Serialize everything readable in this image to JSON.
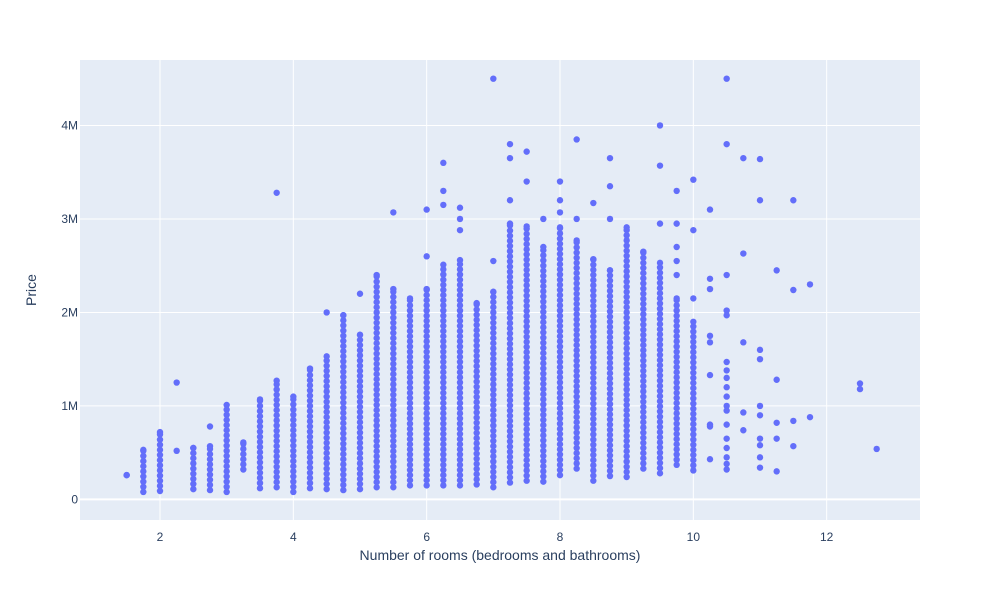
{
  "chart_data": {
    "type": "scatter",
    "title": "",
    "xlabel": "Number of rooms (bedrooms and bathrooms)",
    "ylabel": "Price",
    "xlim": [
      0.8,
      13.4
    ],
    "ylim": [
      -220000,
      4700000
    ],
    "x_ticks": [
      2,
      4,
      6,
      8,
      10,
      12
    ],
    "y_ticks": [
      0,
      1000000,
      2000000,
      3000000,
      4000000
    ],
    "y_tick_labels": [
      "0",
      "1M",
      "2M",
      "3M",
      "4M"
    ],
    "grid": true,
    "legend": "none",
    "colors": {
      "marker": "#636efa",
      "plot_bg": "#e5ecf6",
      "grid": "#ffffff",
      "text": "#2a3f5f"
    },
    "columns": [
      {
        "x": 1.5,
        "min": 260000,
        "max": 260000
      },
      {
        "x": 1.75,
        "min": 80000,
        "max": 530000
      },
      {
        "x": 2.0,
        "min": 90000,
        "max": 720000
      },
      {
        "x": 2.5,
        "min": 110000,
        "max": 550000
      },
      {
        "x": 2.75,
        "min": 100000,
        "max": 570000
      },
      {
        "x": 3.0,
        "min": 80000,
        "max": 1010000
      },
      {
        "x": 3.25,
        "min": 320000,
        "max": 610000
      },
      {
        "x": 3.5,
        "min": 120000,
        "max": 1070000
      },
      {
        "x": 3.75,
        "min": 130000,
        "max": 1270000
      },
      {
        "x": 4.0,
        "min": 80000,
        "max": 1100000
      },
      {
        "x": 4.25,
        "min": 120000,
        "max": 1400000
      },
      {
        "x": 4.5,
        "min": 110000,
        "max": 1530000
      },
      {
        "x": 4.75,
        "min": 100000,
        "max": 1970000
      },
      {
        "x": 5.0,
        "min": 110000,
        "max": 1760000
      },
      {
        "x": 5.25,
        "min": 130000,
        "max": 2400000
      },
      {
        "x": 5.5,
        "min": 130000,
        "max": 2250000
      },
      {
        "x": 5.75,
        "min": 150000,
        "max": 2150000
      },
      {
        "x": 6.0,
        "min": 150000,
        "max": 2250000
      },
      {
        "x": 6.25,
        "min": 150000,
        "max": 2510000
      },
      {
        "x": 6.5,
        "min": 150000,
        "max": 2560000
      },
      {
        "x": 6.75,
        "min": 160000,
        "max": 2100000
      },
      {
        "x": 7.0,
        "min": 130000,
        "max": 2220000
      },
      {
        "x": 7.25,
        "min": 180000,
        "max": 2950000
      },
      {
        "x": 7.5,
        "min": 200000,
        "max": 2920000
      },
      {
        "x": 7.75,
        "min": 190000,
        "max": 2700000
      },
      {
        "x": 8.0,
        "min": 260000,
        "max": 2910000
      },
      {
        "x": 8.25,
        "min": 330000,
        "max": 2770000
      },
      {
        "x": 8.5,
        "min": 200000,
        "max": 2570000
      },
      {
        "x": 8.75,
        "min": 250000,
        "max": 2450000
      },
      {
        "x": 9.0,
        "min": 240000,
        "max": 2910000
      },
      {
        "x": 9.25,
        "min": 330000,
        "max": 2650000
      },
      {
        "x": 9.5,
        "min": 280000,
        "max": 2530000
      },
      {
        "x": 9.75,
        "min": 370000,
        "max": 2150000
      },
      {
        "x": 10.0,
        "min": 310000,
        "max": 1900000
      }
    ],
    "outliers": [
      {
        "x": 2.25,
        "y": 1250000
      },
      {
        "x": 2.25,
        "y": 520000
      },
      {
        "x": 2.75,
        "y": 780000
      },
      {
        "x": 3.75,
        "y": 3280000
      },
      {
        "x": 4.5,
        "y": 2000000
      },
      {
        "x": 5.0,
        "y": 2200000
      },
      {
        "x": 5.5,
        "y": 3070000
      },
      {
        "x": 6.0,
        "y": 2600000
      },
      {
        "x": 6.0,
        "y": 3100000
      },
      {
        "x": 6.25,
        "y": 3600000
      },
      {
        "x": 6.25,
        "y": 3300000
      },
      {
        "x": 6.25,
        "y": 3150000
      },
      {
        "x": 6.5,
        "y": 3120000
      },
      {
        "x": 6.5,
        "y": 3000000
      },
      {
        "x": 6.5,
        "y": 2880000
      },
      {
        "x": 7.0,
        "y": 4500000
      },
      {
        "x": 7.0,
        "y": 2550000
      },
      {
        "x": 7.25,
        "y": 3800000
      },
      {
        "x": 7.25,
        "y": 3650000
      },
      {
        "x": 7.25,
        "y": 3200000
      },
      {
        "x": 7.5,
        "y": 3720000
      },
      {
        "x": 7.5,
        "y": 3400000
      },
      {
        "x": 7.75,
        "y": 3000000
      },
      {
        "x": 8.0,
        "y": 3400000
      },
      {
        "x": 8.0,
        "y": 3200000
      },
      {
        "x": 8.0,
        "y": 3070000
      },
      {
        "x": 8.25,
        "y": 3850000
      },
      {
        "x": 8.25,
        "y": 3000000
      },
      {
        "x": 8.5,
        "y": 3170000
      },
      {
        "x": 8.75,
        "y": 3650000
      },
      {
        "x": 8.75,
        "y": 3350000
      },
      {
        "x": 8.75,
        "y": 3000000
      },
      {
        "x": 9.5,
        "y": 4000000
      },
      {
        "x": 9.5,
        "y": 3570000
      },
      {
        "x": 9.5,
        "y": 2950000
      },
      {
        "x": 9.75,
        "y": 3300000
      },
      {
        "x": 9.75,
        "y": 2950000
      },
      {
        "x": 9.75,
        "y": 2700000
      },
      {
        "x": 9.75,
        "y": 2550000
      },
      {
        "x": 9.75,
        "y": 2400000
      },
      {
        "x": 10.0,
        "y": 3420000
      },
      {
        "x": 10.0,
        "y": 2880000
      },
      {
        "x": 10.0,
        "y": 2150000
      },
      {
        "x": 10.25,
        "y": 3100000
      },
      {
        "x": 10.25,
        "y": 2360000
      },
      {
        "x": 10.25,
        "y": 2250000
      },
      {
        "x": 10.25,
        "y": 1750000
      },
      {
        "x": 10.25,
        "y": 1680000
      },
      {
        "x": 10.25,
        "y": 1330000
      },
      {
        "x": 10.25,
        "y": 800000
      },
      {
        "x": 10.25,
        "y": 780000
      },
      {
        "x": 10.25,
        "y": 430000
      },
      {
        "x": 10.5,
        "y": 4500000
      },
      {
        "x": 10.5,
        "y": 3800000
      },
      {
        "x": 10.5,
        "y": 2400000
      },
      {
        "x": 10.5,
        "y": 2020000
      },
      {
        "x": 10.5,
        "y": 1970000
      },
      {
        "x": 10.5,
        "y": 1470000
      },
      {
        "x": 10.5,
        "y": 1380000
      },
      {
        "x": 10.5,
        "y": 1300000
      },
      {
        "x": 10.5,
        "y": 1200000
      },
      {
        "x": 10.5,
        "y": 1100000
      },
      {
        "x": 10.5,
        "y": 1000000
      },
      {
        "x": 10.5,
        "y": 950000
      },
      {
        "x": 10.5,
        "y": 800000
      },
      {
        "x": 10.5,
        "y": 650000
      },
      {
        "x": 10.5,
        "y": 550000
      },
      {
        "x": 10.5,
        "y": 450000
      },
      {
        "x": 10.5,
        "y": 380000
      },
      {
        "x": 10.5,
        "y": 320000
      },
      {
        "x": 10.75,
        "y": 3650000
      },
      {
        "x": 10.75,
        "y": 2630000
      },
      {
        "x": 10.75,
        "y": 1680000
      },
      {
        "x": 10.75,
        "y": 930000
      },
      {
        "x": 10.75,
        "y": 740000
      },
      {
        "x": 11.0,
        "y": 3640000
      },
      {
        "x": 11.0,
        "y": 3200000
      },
      {
        "x": 11.0,
        "y": 1600000
      },
      {
        "x": 11.0,
        "y": 1500000
      },
      {
        "x": 11.0,
        "y": 1000000
      },
      {
        "x": 11.0,
        "y": 900000
      },
      {
        "x": 11.0,
        "y": 650000
      },
      {
        "x": 11.0,
        "y": 580000
      },
      {
        "x": 11.0,
        "y": 450000
      },
      {
        "x": 11.0,
        "y": 340000
      },
      {
        "x": 11.25,
        "y": 2450000
      },
      {
        "x": 11.25,
        "y": 1280000
      },
      {
        "x": 11.25,
        "y": 820000
      },
      {
        "x": 11.25,
        "y": 650000
      },
      {
        "x": 11.25,
        "y": 300000
      },
      {
        "x": 11.5,
        "y": 3200000
      },
      {
        "x": 11.5,
        "y": 2240000
      },
      {
        "x": 11.5,
        "y": 840000
      },
      {
        "x": 11.5,
        "y": 570000
      },
      {
        "x": 11.75,
        "y": 2300000
      },
      {
        "x": 11.75,
        "y": 880000
      },
      {
        "x": 12.5,
        "y": 1240000
      },
      {
        "x": 12.5,
        "y": 1180000
      },
      {
        "x": 12.75,
        "y": 540000
      }
    ]
  }
}
